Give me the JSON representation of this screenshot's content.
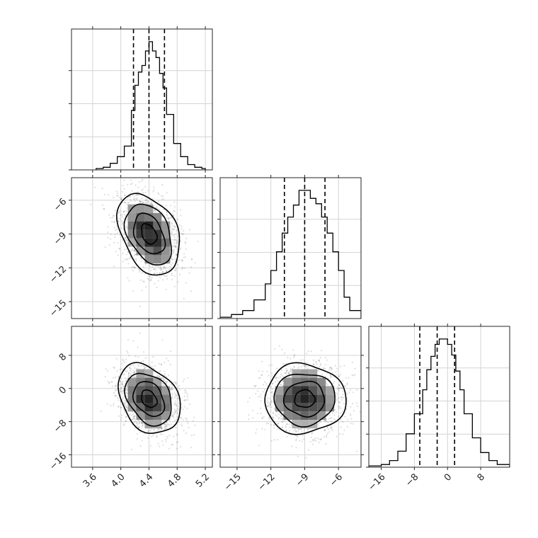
{
  "chart_data": {
    "type": "corner",
    "parameters": [
      {
        "mean": 4.4,
        "std": 0.22,
        "range": [
          3.3,
          5.3
        ],
        "ticks": [
          3.6,
          4.0,
          4.4,
          4.8,
          5.2
        ],
        "tick_labels": [
          "3.6",
          "4.0",
          "4.4",
          "4.8",
          "5.2"
        ],
        "quantiles": [
          4.18,
          4.4,
          4.62
        ]
      },
      {
        "mean": -9.0,
        "std": 1.8,
        "range": [
          -16.5,
          -4.0
        ],
        "ticks": [
          -15,
          -12,
          -9,
          -6
        ],
        "tick_labels": [
          "−15",
          "−12",
          "−9",
          "−6"
        ],
        "quantiles": [
          -10.8,
          -9.0,
          -7.2
        ]
      },
      {
        "mean": -2.5,
        "std": 4.2,
        "range": [
          -19.0,
          15.0
        ],
        "ticks": [
          -16,
          -8,
          0,
          8
        ],
        "tick_labels": [
          "−16",
          "−8",
          "0",
          "8"
        ],
        "quantiles": [
          -6.7,
          -2.5,
          1.7
        ]
      }
    ],
    "histograms": [
      {
        "param": 0,
        "bin_edges": [
          3.65,
          3.75,
          3.85,
          3.95,
          4.05,
          4.15,
          4.2,
          4.25,
          4.3,
          4.35,
          4.4,
          4.45,
          4.5,
          4.55,
          4.6,
          4.65,
          4.75,
          4.85,
          4.95,
          5.05,
          5.15,
          5.2
        ],
        "counts": [
          1,
          2,
          5,
          10,
          18,
          45,
          64,
          74,
          79,
          90,
          97,
          90,
          85,
          73,
          62,
          42,
          20,
          10,
          4,
          2,
          1
        ]
      },
      {
        "param": 1,
        "bin_edges": [
          -16.5,
          -15.5,
          -14.5,
          -13.5,
          -12.5,
          -12.0,
          -11.5,
          -11.0,
          -10.5,
          -10.0,
          -9.5,
          -9.0,
          -8.5,
          -8.0,
          -7.5,
          -7.0,
          -6.5,
          -6.0,
          -5.5,
          -5.0,
          -4.0
        ],
        "counts": [
          1,
          3,
          6,
          14,
          26,
          36,
          50,
          64,
          76,
          85,
          96,
          96,
          90,
          86,
          76,
          64,
          50,
          36,
          16,
          6
        ]
      },
      {
        "param": 2,
        "bin_edges": [
          -19,
          -16,
          -14,
          -12,
          -10,
          -8,
          -6,
          -5,
          -4,
          -3,
          -2,
          -1,
          0,
          1,
          2,
          3,
          4,
          6,
          8,
          10,
          12,
          15
        ],
        "counts": [
          1,
          2,
          5,
          12,
          25,
          40,
          58,
          73,
          83,
          92,
          96,
          96,
          92,
          84,
          72,
          58,
          40,
          22,
          11,
          5,
          2
        ]
      }
    ],
    "grid": true
  }
}
